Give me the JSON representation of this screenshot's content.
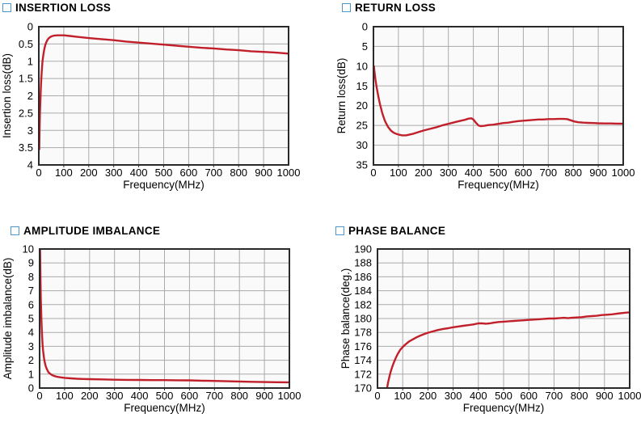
{
  "page": {
    "background": "#ffffff"
  },
  "style": {
    "curve_color": "#c1202b",
    "grid_color": "#aaaaaa",
    "frame_color": "#2a2a2a",
    "plot_background": "#fafafa",
    "text_color": "#000000",
    "checkbox_border_color": "#4e97cb"
  },
  "chart_data": [
    {
      "id": "insertion-loss",
      "type": "line",
      "title": "INSERTION LOSS",
      "xlabel": "Frequency(MHz)",
      "ylabel": "Insertion loss(dB)",
      "xlim": [
        0,
        1000
      ],
      "ylim": [
        0,
        4
      ],
      "y_axis_direction": "down",
      "grid": true,
      "legend": "none",
      "x_ticks": [
        0,
        100,
        200,
        300,
        400,
        500,
        600,
        700,
        800,
        900,
        1000
      ],
      "y_ticks": [
        0,
        0.5,
        1,
        1.5,
        2,
        2.5,
        3,
        3.5,
        4
      ],
      "series": [
        {
          "name": "Insertion loss",
          "points": [
            [
              2,
              3.55
            ],
            [
              3,
              3.1
            ],
            [
              4,
              2.75
            ],
            [
              5,
              2.45
            ],
            [
              6,
              2.2
            ],
            [
              8,
              1.8
            ],
            [
              10,
              1.5
            ],
            [
              12,
              1.27
            ],
            [
              15,
              1.0
            ],
            [
              18,
              0.82
            ],
            [
              22,
              0.65
            ],
            [
              26,
              0.53
            ],
            [
              30,
              0.45
            ],
            [
              35,
              0.38
            ],
            [
              40,
              0.33
            ],
            [
              50,
              0.28
            ],
            [
              60,
              0.26
            ],
            [
              75,
              0.25
            ],
            [
              100,
              0.25
            ],
            [
              125,
              0.27
            ],
            [
              150,
              0.29
            ],
            [
              200,
              0.33
            ],
            [
              250,
              0.36
            ],
            [
              300,
              0.39
            ],
            [
              350,
              0.43
            ],
            [
              400,
              0.46
            ],
            [
              450,
              0.49
            ],
            [
              500,
              0.52
            ],
            [
              550,
              0.55
            ],
            [
              600,
              0.58
            ],
            [
              650,
              0.61
            ],
            [
              700,
              0.63
            ],
            [
              750,
              0.66
            ],
            [
              800,
              0.68
            ],
            [
              850,
              0.71
            ],
            [
              900,
              0.73
            ],
            [
              950,
              0.75
            ],
            [
              1000,
              0.78
            ]
          ]
        }
      ]
    },
    {
      "id": "return-loss",
      "type": "line",
      "title": "RETURN LOSS",
      "xlabel": "Frequency(MHz)",
      "ylabel": "Return loss(dB)",
      "xlim": [
        0,
        1000
      ],
      "ylim": [
        0,
        35
      ],
      "y_axis_direction": "down",
      "grid": true,
      "legend": "none",
      "x_ticks": [
        0,
        100,
        200,
        300,
        400,
        500,
        600,
        700,
        800,
        900,
        1000
      ],
      "y_ticks": [
        0,
        5,
        10,
        15,
        20,
        25,
        30,
        35
      ],
      "series": [
        {
          "name": "Return loss",
          "points": [
            [
              2,
              10
            ],
            [
              4,
              11.3
            ],
            [
              6,
              12.4
            ],
            [
              8,
              13.4
            ],
            [
              10,
              14.2
            ],
            [
              13,
              15.4
            ],
            [
              16,
              16.4
            ],
            [
              20,
              17.8
            ],
            [
              25,
              19.3
            ],
            [
              30,
              20.6
            ],
            [
              35,
              21.8
            ],
            [
              40,
              22.8
            ],
            [
              45,
              23.7
            ],
            [
              50,
              24.4
            ],
            [
              55,
              25.0
            ],
            [
              60,
              25.5
            ],
            [
              70,
              26.3
            ],
            [
              80,
              26.8
            ],
            [
              90,
              27.1
            ],
            [
              100,
              27.3
            ],
            [
              115,
              27.5
            ],
            [
              130,
              27.5
            ],
            [
              145,
              27.3
            ],
            [
              160,
              27.1
            ],
            [
              180,
              26.7
            ],
            [
              200,
              26.3
            ],
            [
              225,
              25.9
            ],
            [
              250,
              25.5
            ],
            [
              275,
              25.0
            ],
            [
              300,
              24.6
            ],
            [
              325,
              24.2
            ],
            [
              350,
              23.8
            ],
            [
              365,
              23.6
            ],
            [
              380,
              23.3
            ],
            [
              392,
              23.2
            ],
            [
              400,
              23.5
            ],
            [
              410,
              24.3
            ],
            [
              420,
              25.0
            ],
            [
              430,
              25.2
            ],
            [
              445,
              25.1
            ],
            [
              460,
              24.9
            ],
            [
              480,
              24.8
            ],
            [
              500,
              24.6
            ],
            [
              520,
              24.4
            ],
            [
              540,
              24.3
            ],
            [
              560,
              24.1
            ],
            [
              580,
              23.9
            ],
            [
              600,
              23.8
            ],
            [
              620,
              23.7
            ],
            [
              640,
              23.6
            ],
            [
              660,
              23.5
            ],
            [
              680,
              23.5
            ],
            [
              700,
              23.4
            ],
            [
              720,
              23.4
            ],
            [
              740,
              23.35
            ],
            [
              760,
              23.35
            ],
            [
              775,
              23.4
            ],
            [
              790,
              23.7
            ],
            [
              805,
              24.0
            ],
            [
              820,
              24.2
            ],
            [
              840,
              24.3
            ],
            [
              860,
              24.35
            ],
            [
              880,
              24.4
            ],
            [
              900,
              24.45
            ],
            [
              925,
              24.5
            ],
            [
              950,
              24.5
            ],
            [
              975,
              24.55
            ],
            [
              1000,
              24.55
            ]
          ]
        }
      ]
    },
    {
      "id": "amplitude-imbalance",
      "type": "line",
      "title": "AMPLITUDE IMBALANCE",
      "xlabel": "Frequency(MHz)",
      "ylabel": "Amplitude imbalance(dB)",
      "xlim": [
        0,
        1000
      ],
      "ylim": [
        0,
        10
      ],
      "y_axis_direction": "up",
      "grid": true,
      "legend": "none",
      "x_ticks": [
        0,
        100,
        200,
        300,
        400,
        500,
        600,
        700,
        800,
        900,
        1000
      ],
      "y_ticks": [
        0,
        1,
        2,
        3,
        4,
        5,
        6,
        7,
        8,
        9,
        10
      ],
      "series": [
        {
          "name": "Amplitude imbalance",
          "points": [
            [
              2,
              10
            ],
            [
              3,
              8.6
            ],
            [
              4,
              7.4
            ],
            [
              5,
              6.4
            ],
            [
              6,
              5.6
            ],
            [
              7,
              5.0
            ],
            [
              8,
              4.5
            ],
            [
              10,
              3.7
            ],
            [
              12,
              3.1
            ],
            [
              14,
              2.7
            ],
            [
              16,
              2.4
            ],
            [
              18,
              2.1
            ],
            [
              20,
              1.9
            ],
            [
              24,
              1.6
            ],
            [
              28,
              1.4
            ],
            [
              32,
              1.25
            ],
            [
              36,
              1.13
            ],
            [
              40,
              1.05
            ],
            [
              50,
              0.93
            ],
            [
              60,
              0.86
            ],
            [
              70,
              0.81
            ],
            [
              80,
              0.78
            ],
            [
              100,
              0.73
            ],
            [
              125,
              0.7
            ],
            [
              150,
              0.67
            ],
            [
              175,
              0.65
            ],
            [
              200,
              0.64
            ],
            [
              250,
              0.62
            ],
            [
              300,
              0.6
            ],
            [
              350,
              0.59
            ],
            [
              400,
              0.58
            ],
            [
              450,
              0.57
            ],
            [
              500,
              0.57
            ],
            [
              550,
              0.56
            ],
            [
              600,
              0.55
            ],
            [
              650,
              0.53
            ],
            [
              700,
              0.51
            ],
            [
              750,
              0.49
            ],
            [
              800,
              0.47
            ],
            [
              850,
              0.45
            ],
            [
              900,
              0.43
            ],
            [
              950,
              0.42
            ],
            [
              1000,
              0.41
            ]
          ]
        }
      ]
    },
    {
      "id": "phase-balance",
      "type": "line",
      "title": "PHASE BALANCE",
      "xlabel": "Frequency(MHz)",
      "ylabel": "Phase balance(deg.)",
      "xlim": [
        0,
        1000
      ],
      "ylim": [
        170,
        190
      ],
      "y_axis_direction": "up",
      "grid": true,
      "legend": "none",
      "x_ticks": [
        0,
        100,
        200,
        300,
        400,
        500,
        600,
        700,
        800,
        900,
        1000
      ],
      "y_ticks": [
        170,
        172,
        174,
        176,
        178,
        180,
        182,
        184,
        186,
        188,
        190
      ],
      "series": [
        {
          "name": "Phase balance",
          "points": [
            [
              38,
              170
            ],
            [
              42,
              170.8
            ],
            [
              47,
              171.6
            ],
            [
              52,
              172.3
            ],
            [
              58,
              173.0
            ],
            [
              64,
              173.6
            ],
            [
              72,
              174.3
            ],
            [
              80,
              174.9
            ],
            [
              90,
              175.5
            ],
            [
              100,
              175.9
            ],
            [
              112,
              176.3
            ],
            [
              125,
              176.7
            ],
            [
              140,
              177.0
            ],
            [
              155,
              177.3
            ],
            [
              170,
              177.55
            ],
            [
              185,
              177.75
            ],
            [
              200,
              177.95
            ],
            [
              220,
              178.15
            ],
            [
              240,
              178.35
            ],
            [
              260,
              178.5
            ],
            [
              280,
              178.6
            ],
            [
              300,
              178.75
            ],
            [
              320,
              178.85
            ],
            [
              340,
              178.95
            ],
            [
              360,
              179.05
            ],
            [
              380,
              179.15
            ],
            [
              400,
              179.3
            ],
            [
              415,
              179.3
            ],
            [
              430,
              179.25
            ],
            [
              445,
              179.3
            ],
            [
              460,
              179.4
            ],
            [
              480,
              179.5
            ],
            [
              500,
              179.55
            ],
            [
              520,
              179.6
            ],
            [
              540,
              179.65
            ],
            [
              560,
              179.7
            ],
            [
              580,
              179.75
            ],
            [
              600,
              179.8
            ],
            [
              620,
              179.85
            ],
            [
              640,
              179.9
            ],
            [
              660,
              179.95
            ],
            [
              680,
              180.0
            ],
            [
              700,
              180.0
            ],
            [
              720,
              180.05
            ],
            [
              740,
              180.1
            ],
            [
              755,
              180.05
            ],
            [
              770,
              180.1
            ],
            [
              790,
              180.15
            ],
            [
              810,
              180.2
            ],
            [
              830,
              180.3
            ],
            [
              850,
              180.35
            ],
            [
              870,
              180.4
            ],
            [
              890,
              180.5
            ],
            [
              910,
              180.55
            ],
            [
              930,
              180.6
            ],
            [
              950,
              180.7
            ],
            [
              975,
              180.8
            ],
            [
              1000,
              180.9
            ]
          ]
        }
      ]
    }
  ]
}
